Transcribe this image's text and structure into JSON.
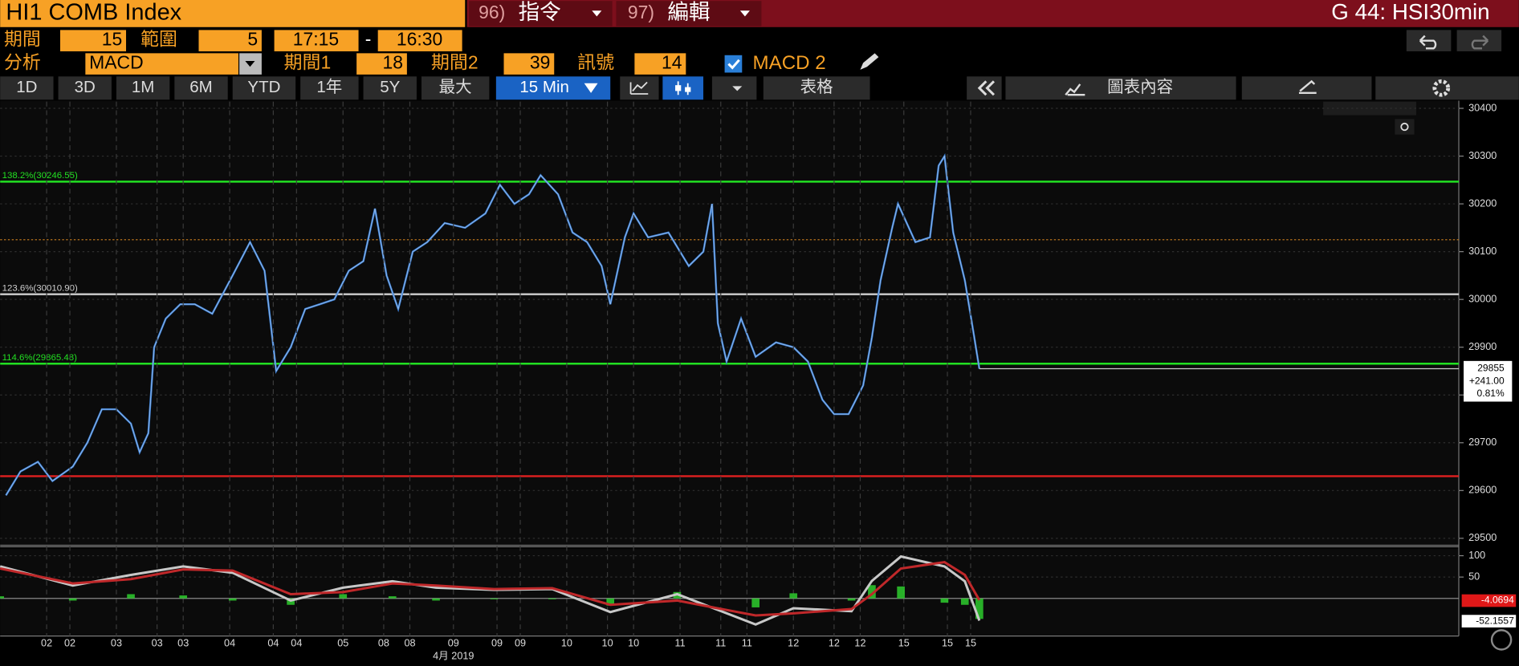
{
  "header": {
    "ticker": "HI1 COMB Index",
    "cmd1_num": "96)",
    "cmd1": "指令",
    "cmd2_num": "97)",
    "cmd2": "編輯",
    "page": "G 44: HSI30min"
  },
  "params": {
    "period_label": "期間",
    "period": 15,
    "range_label": "範圍",
    "range": 5,
    "time_from": "17:15",
    "dash": "-",
    "time_to": "16:30",
    "analysis_label": "分析",
    "analysis": "MACD",
    "p1_label": "期間1",
    "p1": 18,
    "p2_label": "期間2",
    "p2": 39,
    "signal_label": "訊號",
    "signal": 14,
    "study": "MACD 2"
  },
  "toolbar": {
    "ranges": [
      "1D",
      "3D",
      "1M",
      "6M",
      "YTD",
      "1年",
      "5Y",
      "最大"
    ],
    "interval": "15 Min",
    "table": "表格",
    "chart_content": "圖表內容"
  },
  "chart_data": [
    {
      "type": "line",
      "color": "#3a7fd5",
      "x": [
        2,
        7,
        13,
        18,
        25,
        30,
        35,
        40,
        45,
        48,
        51,
        53,
        57,
        62,
        67,
        73,
        80,
        86,
        91,
        95,
        100,
        105,
        110,
        115,
        120,
        125,
        129,
        133,
        137,
        142,
        147,
        153,
        160,
        167,
        172,
        177,
        182,
        186,
        192,
        197,
        202,
        207,
        210,
        215,
        218,
        223,
        230,
        237,
        242,
        245,
        247,
        250,
        255,
        260,
        267,
        273,
        278,
        283,
        287,
        292,
        297,
        300,
        303,
        307,
        309,
        315,
        320,
        323,
        325,
        328,
        332,
        335,
        337
      ],
      "values": [
        29590,
        29640,
        29660,
        29620,
        29650,
        29700,
        29770,
        29770,
        29740,
        29680,
        29720,
        29900,
        29960,
        29990,
        29990,
        29970,
        30050,
        30120,
        30060,
        29850,
        29900,
        29980,
        29990,
        30000,
        30060,
        30080,
        30190,
        30050,
        29980,
        30100,
        30120,
        30160,
        30150,
        30180,
        30240,
        30200,
        30220,
        30260,
        30220,
        30140,
        30120,
        30070,
        29990,
        30130,
        30180,
        30130,
        30140,
        30070,
        30100,
        30200,
        29950,
        29870,
        29960,
        29880,
        29910,
        29900,
        29870,
        29790,
        29760,
        29760,
        29820,
        29920,
        30040,
        30150,
        30200,
        30120,
        30130,
        30280,
        30300,
        30140,
        30040,
        29930,
        29855
      ],
      "xlim": [
        0,
        502
      ],
      "ylim": [
        29488,
        30414
      ],
      "yticks": [
        29500,
        29600,
        29700,
        29800,
        29900,
        30000,
        30100,
        30200,
        30300,
        30400
      ],
      "grid": true,
      "levels": [
        {
          "label": "138.2%(30246.55)",
          "value": 30246.55,
          "color": "#22e022"
        },
        {
          "value": 30125,
          "color": "#b8731e",
          "style": "dotted"
        },
        {
          "label": "123.6%(30010.90)",
          "value": 30010.9,
          "color": "#cfcfcf"
        },
        {
          "label": "114.6%(29865.48)",
          "value": 29865.48,
          "color": "#22e022"
        },
        {
          "value": 29630,
          "color": "#e02020"
        }
      ],
      "last_value": 29855,
      "change": "+241.00",
      "change_pct": "0.81%"
    },
    {
      "type": "macd",
      "x": [
        0,
        25,
        45,
        63,
        80,
        100,
        118,
        135,
        150,
        170,
        190,
        210,
        233,
        260,
        273,
        293,
        300,
        310,
        325,
        332,
        337
      ],
      "xlim": [
        0,
        502
      ],
      "ylim": [
        -88,
        116
      ],
      "yticks": [
        50,
        100
      ],
      "xticks": [
        {
          "value": 16,
          "label": "02"
        },
        {
          "value": 24,
          "label": "02"
        },
        {
          "value": 40,
          "label": "03"
        },
        {
          "value": 54,
          "label": "03"
        },
        {
          "value": 63,
          "label": "03"
        },
        {
          "value": 79,
          "label": "04"
        },
        {
          "value": 94,
          "label": "04"
        },
        {
          "value": 102,
          "label": "04"
        },
        {
          "value": 118,
          "label": "05"
        },
        {
          "value": 132,
          "label": "08"
        },
        {
          "value": 141,
          "label": "08"
        },
        {
          "value": 156,
          "label": "09"
        },
        {
          "value": 171,
          "label": "09"
        },
        {
          "value": 179,
          "label": "09"
        },
        {
          "value": 195,
          "label": "10"
        },
        {
          "value": 209,
          "label": "10"
        },
        {
          "value": 218,
          "label": "10"
        },
        {
          "value": 234,
          "label": "11"
        },
        {
          "value": 248,
          "label": "11"
        },
        {
          "value": 257,
          "label": "11"
        },
        {
          "value": 273,
          "label": "12"
        },
        {
          "value": 287,
          "label": "12"
        },
        {
          "value": 296,
          "label": "12"
        },
        {
          "value": 311,
          "label": "15"
        },
        {
          "value": 326,
          "label": "15"
        },
        {
          "value": 334,
          "label": "15"
        }
      ],
      "xlabel": "4月 2019",
      "series": [
        {
          "type": "bar",
          "color": "#2ecc2e",
          "values": [
            5,
            -5,
            10,
            7,
            -5,
            -15,
            10,
            5,
            -5,
            -2,
            -2,
            -17,
            15,
            -21,
            12,
            -5,
            31,
            28,
            -10,
            -15,
            -48
          ]
        },
        {
          "type": "line",
          "color": "#c8c8c8",
          "values": [
            75,
            30,
            55,
            75,
            60,
            -5,
            25,
            40,
            25,
            20,
            22,
            -32,
            10,
            -61,
            -23,
            -30,
            41,
            98,
            75,
            40,
            -52
          ],
          "last_value": -52.1557
        },
        {
          "type": "line",
          "color": "#c0282a",
          "values": [
            70,
            35,
            45,
            68,
            65,
            10,
            15,
            35,
            30,
            22,
            24,
            -15,
            -5,
            -40,
            -35,
            -25,
            10,
            70,
            85,
            55,
            -4
          ],
          "last_value": -4.0694
        }
      ]
    }
  ]
}
